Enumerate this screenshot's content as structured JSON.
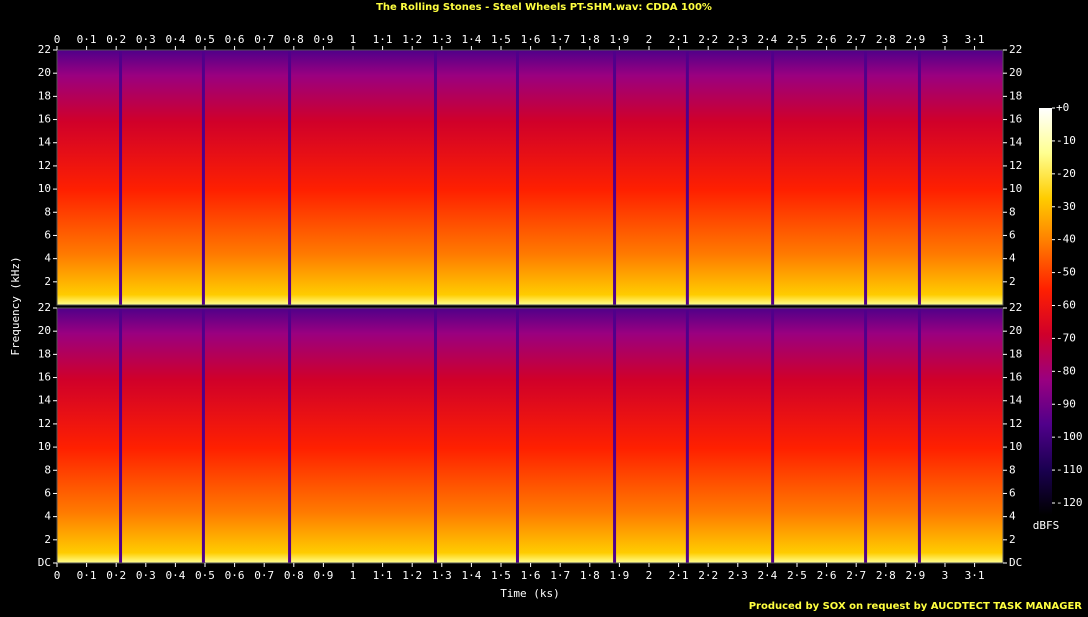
{
  "chart_data": {
    "type": "spectrogram",
    "title": "The Rolling Stones - Steel Wheels PT-SHM.wav: CDDA 100%",
    "footer": "Produced by SOX on request by AUCDTECT TASK MANAGER",
    "x_label": "Time (ks)",
    "y_label": "Frequency (kHz)",
    "colorbar_label": "dBFS",
    "xlim": [
      0,
      3.196
    ],
    "xticks": [
      0,
      {
        "value": 0.1,
        "label": "0·1"
      },
      {
        "value": 0.2,
        "label": "0·2"
      },
      {
        "value": 0.3,
        "label": "0·3"
      },
      {
        "value": 0.4,
        "label": "0·4"
      },
      {
        "value": 0.5,
        "label": "0·5"
      },
      {
        "value": 0.6,
        "label": "0·6"
      },
      {
        "value": 0.7,
        "label": "0·7"
      },
      {
        "value": 0.8,
        "label": "0·8"
      },
      {
        "value": 0.9,
        "label": "0·9"
      },
      1,
      {
        "value": 1.1,
        "label": "1·1"
      },
      {
        "value": 1.2,
        "label": "1·2"
      },
      {
        "value": 1.3,
        "label": "1·3"
      },
      {
        "value": 1.4,
        "label": "1·4"
      },
      {
        "value": 1.5,
        "label": "1·5"
      },
      {
        "value": 1.6,
        "label": "1·6"
      },
      {
        "value": 1.7,
        "label": "1·7"
      },
      {
        "value": 1.8,
        "label": "1·8"
      },
      {
        "value": 1.9,
        "label": "1·9"
      },
      2,
      {
        "value": 2.1,
        "label": "2·1"
      },
      {
        "value": 2.2,
        "label": "2·2"
      },
      {
        "value": 2.3,
        "label": "2·3"
      },
      {
        "value": 2.4,
        "label": "2·4"
      },
      {
        "value": 2.5,
        "label": "2·5"
      },
      {
        "value": 2.6,
        "label": "2·6"
      },
      {
        "value": 2.7,
        "label": "2·7"
      },
      {
        "value": 2.8,
        "label": "2·8"
      },
      {
        "value": 2.9,
        "label": "2·9"
      },
      3,
      {
        "value": 3.1,
        "label": "3·1"
      }
    ],
    "ylim": [
      0,
      22
    ],
    "yticks": [
      {
        "value": 0,
        "label": "DC"
      },
      2,
      4,
      6,
      8,
      10,
      12,
      14,
      16,
      18,
      20,
      22
    ],
    "clim": [
      -120,
      0
    ],
    "cticks": [
      {
        "value": 0,
        "label": "+0"
      },
      -10,
      -20,
      -30,
      -40,
      -50,
      -60,
      -70,
      -80,
      -90,
      -100,
      -110,
      -120
    ],
    "colormap": [
      "#000000",
      "#1a0050",
      "#50008a",
      "#9a0080",
      "#d0002a",
      "#ff2000",
      "#ff7a00",
      "#ffcc00",
      "#ffff90",
      "#ffffff"
    ],
    "track_starts": [
      0,
      0.213,
      0.493,
      0.784,
      1.277,
      1.554,
      1.882,
      2.128,
      2.416,
      2.73,
      2.912
    ]
  }
}
